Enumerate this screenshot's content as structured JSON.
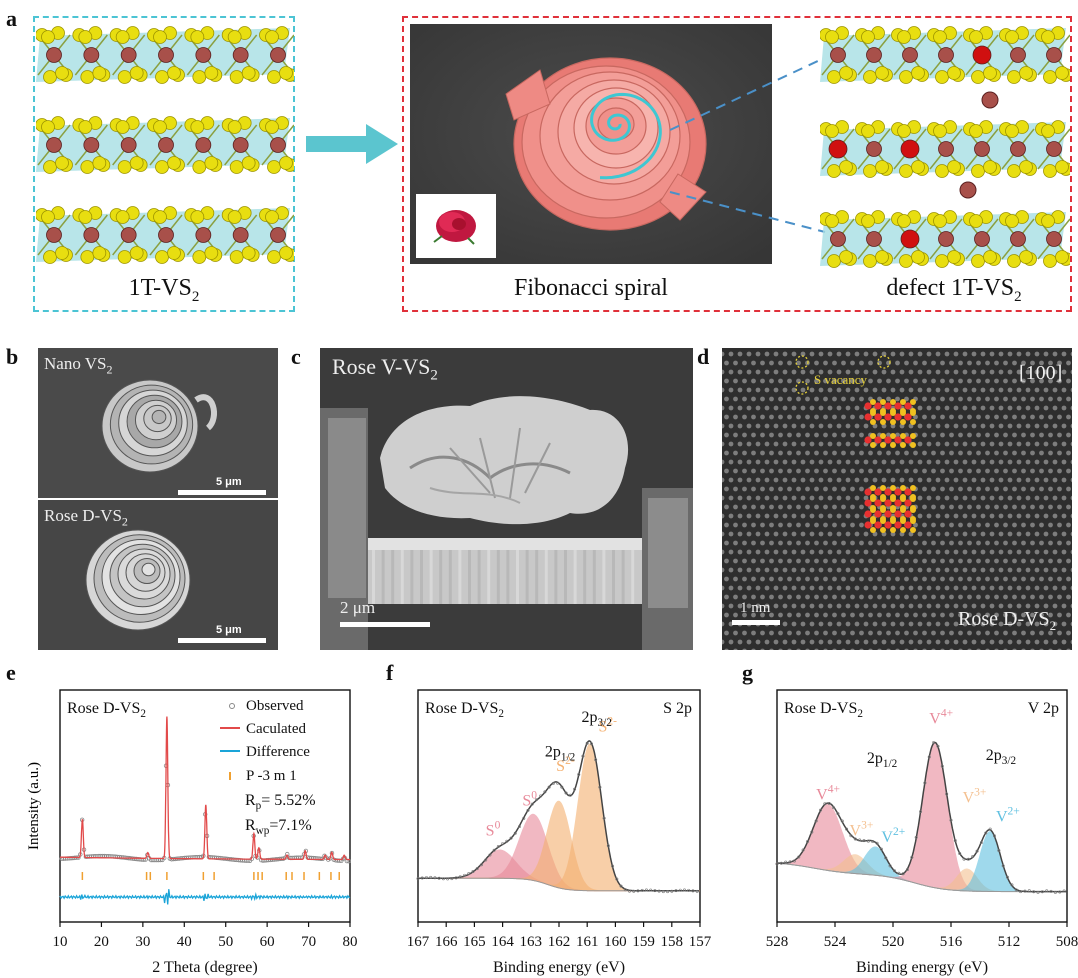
{
  "panels": {
    "a": {
      "label": "a",
      "left_caption": "1T-VS",
      "left_caption_sub": "2",
      "center_caption": "Fibonacci spiral",
      "right_caption": "defect 1T-VS",
      "right_caption_sub": "2"
    },
    "b": {
      "label": "b",
      "top_title": "Nano VS",
      "top_title_sub": "2",
      "top_scale": "5 μm",
      "bottom_title": "Rose D-VS",
      "bottom_title_sub": "2",
      "bottom_scale": "5 μm"
    },
    "c": {
      "label": "c",
      "title": "Rose V-VS",
      "title_sub": "2",
      "scale": "2 μm"
    },
    "d": {
      "label": "d",
      "vacancy_label": "S vacancy",
      "zone_axis": "[100]",
      "scale": "1 nm",
      "sample": "Rose D-VS",
      "sample_sub": "2"
    },
    "e": {
      "label": "e"
    },
    "f": {
      "label": "f"
    },
    "g": {
      "label": "g"
    }
  },
  "colors": {
    "cyan_frame": "#4cc4d4",
    "red_frame": "#e0303a",
    "arrow": "#5bc5cf",
    "rose": "#f08a86",
    "observed": "#888888",
    "calculated": "#e24a4a",
    "difference": "#1aa4d8",
    "bragg": "#f0a030",
    "s0_peak": "#e88a9a",
    "s2_peak": "#f4b070",
    "v4_peak": "#e88a9a",
    "v3_peak": "#f4c090",
    "v2_peak": "#60c0e0"
  },
  "chart_data": [
    {
      "type": "line",
      "panel": "e",
      "title": "Rose D-VS",
      "title_sub": "2",
      "xlabel": "2 Theta (degree)",
      "ylabel": "Intensity (a.u.)",
      "xlim": [
        10,
        80
      ],
      "xticks": [
        10,
        20,
        30,
        40,
        50,
        60,
        70,
        80
      ],
      "legend": [
        {
          "name": "Observed",
          "marker": "circle"
        },
        {
          "name": "Caculated",
          "marker": "line"
        },
        {
          "name": "Difference",
          "marker": "line"
        },
        {
          "name": "P -3 m 1",
          "marker": "tick"
        }
      ],
      "annotations": [
        {
          "text": "R",
          "sub": "p",
          "rest": "= 5.52%"
        },
        {
          "text": "R",
          "sub": "wp",
          "rest": "=7.1%"
        }
      ],
      "peaks": [
        {
          "x": 15.4,
          "height": 0.27
        },
        {
          "x": 31.2,
          "height": 0.04
        },
        {
          "x": 35.8,
          "height": 1.0
        },
        {
          "x": 45.2,
          "height": 0.38
        },
        {
          "x": 56.8,
          "height": 0.18
        },
        {
          "x": 58.0,
          "height": 0.08
        },
        {
          "x": 64.8,
          "height": 0.03
        },
        {
          "x": 69.2,
          "height": 0.06
        },
        {
          "x": 74.0,
          "height": 0.03
        },
        {
          "x": 75.6,
          "height": 0.05
        },
        {
          "x": 78.6,
          "height": 0.03
        }
      ],
      "bragg_positions": [
        15.4,
        30.9,
        31.8,
        35.8,
        44.6,
        47.2,
        56.8,
        57.8,
        58.8,
        64.6,
        66.0,
        68.9,
        72.6,
        75.4,
        77.4
      ]
    },
    {
      "type": "line",
      "panel": "f",
      "title": "Rose D-VS",
      "title_sub": "2",
      "corner_label": "S 2p",
      "xlabel": "Binding energy (eV)",
      "xlim": [
        167,
        157
      ],
      "xticks": [
        167,
        166,
        165,
        164,
        163,
        162,
        161,
        160,
        159,
        158,
        157
      ],
      "components": [
        {
          "name": "S0",
          "center": 164.1,
          "height": 0.18,
          "width": 0.55,
          "color_key": "s0_peak"
        },
        {
          "name": "S0",
          "center": 162.9,
          "height": 0.42,
          "width": 0.5,
          "color_key": "s0_peak"
        },
        {
          "name": "S2-",
          "center": 162.0,
          "height": 0.55,
          "width": 0.42,
          "color_key": "s2_peak"
        },
        {
          "name": "S2-",
          "center": 160.9,
          "height": 0.93,
          "width": 0.42,
          "color_key": "s2_peak"
        }
      ],
      "peak_labels": [
        {
          "text": "S",
          "sup": "0",
          "x": 164.6,
          "y": 0.37,
          "color_key": "s0_peak"
        },
        {
          "text": "S",
          "sup": "0",
          "x": 163.3,
          "y": 0.56,
          "color_key": "s0_peak"
        },
        {
          "text": "S",
          "sup": "2-",
          "x": 162.1,
          "y": 0.78,
          "color_key": "s2_peak"
        },
        {
          "text": "S",
          "sup": "2-",
          "x": 160.6,
          "y": 1.03,
          "color_key": "s2_peak"
        },
        {
          "text": "2p",
          "sub": "1/2",
          "x": 162.5,
          "y": 0.87,
          "color_key": null
        },
        {
          "text": "2p",
          "sub": "3/2",
          "x": 161.2,
          "y": 1.09,
          "color_key": null
        }
      ]
    },
    {
      "type": "line",
      "panel": "g",
      "title": "Rose D-VS",
      "title_sub": "2",
      "corner_label": "V 2p",
      "xlabel": "Binding energy (eV)",
      "xlim": [
        528,
        508
      ],
      "xticks": [
        528,
        524,
        520,
        516,
        512,
        508
      ],
      "components": [
        {
          "name": "V4+",
          "center": 524.5,
          "height": 0.42,
          "width": 1.0,
          "color_key": "v4_peak"
        },
        {
          "name": "V3+",
          "center": 522.6,
          "height": 0.12,
          "width": 0.8,
          "color_key": "v3_peak"
        },
        {
          "name": "V2+",
          "center": 521.2,
          "height": 0.18,
          "width": 0.75,
          "color_key": "v2_peak"
        },
        {
          "name": "V4+",
          "center": 517.1,
          "height": 0.92,
          "width": 0.85,
          "color_key": "v4_peak"
        },
        {
          "name": "V3+",
          "center": 514.9,
          "height": 0.14,
          "width": 0.7,
          "color_key": "v3_peak"
        },
        {
          "name": "V2+",
          "center": 513.3,
          "height": 0.38,
          "width": 0.7,
          "color_key": "v2_peak"
        }
      ],
      "peak_labels": [
        {
          "text": "V",
          "sup": "4+",
          "x": 525.3,
          "y": 0.6,
          "color_key": "v4_peak"
        },
        {
          "text": "V",
          "sup": "3+",
          "x": 523.0,
          "y": 0.37,
          "color_key": "v3_peak"
        },
        {
          "text": "V",
          "sup": "2+",
          "x": 520.8,
          "y": 0.33,
          "color_key": "v2_peak"
        },
        {
          "text": "V",
          "sup": "4+",
          "x": 517.5,
          "y": 1.08,
          "color_key": "v4_peak"
        },
        {
          "text": "V",
          "sup": "3+",
          "x": 515.2,
          "y": 0.58,
          "color_key": "v3_peak"
        },
        {
          "text": "V",
          "sup": "2+",
          "x": 512.9,
          "y": 0.46,
          "color_key": "v2_peak"
        },
        {
          "text": "2p",
          "sub": "1/2",
          "x": 521.8,
          "y": 0.83,
          "color_key": null
        },
        {
          "text": "2p",
          "sub": "3/2",
          "x": 513.6,
          "y": 0.85,
          "color_key": null
        }
      ]
    }
  ]
}
